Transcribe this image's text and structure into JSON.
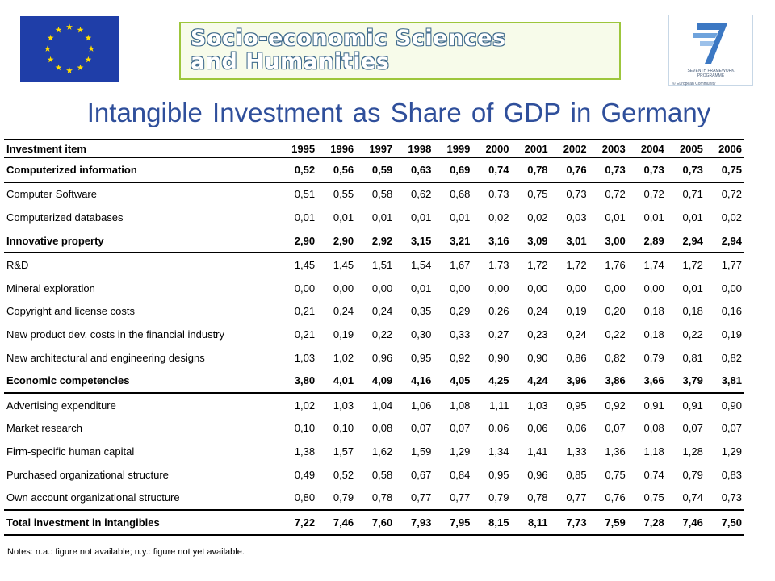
{
  "logos": {
    "left": "eu-flag-logo",
    "banner_line1": "Socio-economic Sciences",
    "banner_line2": "and Humanities",
    "right_caption_1": "SEVENTH FRAMEWORK",
    "right_caption_2": "PROGRAMME",
    "right_caption_3": "© European Community"
  },
  "title": "Intangible Investment as Share of GDP in Germany",
  "table": {
    "header_label": "Investment item",
    "years": [
      "1995",
      "1996",
      "1997",
      "1998",
      "1999",
      "2000",
      "2001",
      "2002",
      "2003",
      "2004",
      "2005",
      "2006"
    ],
    "rows": [
      {
        "label": "Computerized information",
        "bold": true,
        "values": [
          "0,52",
          "0,56",
          "0,59",
          "0,63",
          "0,69",
          "0,74",
          "0,78",
          "0,76",
          "0,73",
          "0,73",
          "0,73",
          "0,75"
        ]
      },
      {
        "label": "Computer Software",
        "bold": false,
        "values": [
          "0,51",
          "0,55",
          "0,58",
          "0,62",
          "0,68",
          "0,73",
          "0,75",
          "0,73",
          "0,72",
          "0,72",
          "0,71",
          "0,72"
        ]
      },
      {
        "label": "Computerized databases",
        "bold": false,
        "values": [
          "0,01",
          "0,01",
          "0,01",
          "0,01",
          "0,01",
          "0,02",
          "0,02",
          "0,03",
          "0,01",
          "0,01",
          "0,01",
          "0,02"
        ]
      },
      {
        "label": "Innovative property",
        "bold": true,
        "values": [
          "2,90",
          "2,90",
          "2,92",
          "3,15",
          "3,21",
          "3,16",
          "3,09",
          "3,01",
          "3,00",
          "2,89",
          "2,94",
          "2,94"
        ]
      },
      {
        "label": "R&D",
        "bold": false,
        "values": [
          "1,45",
          "1,45",
          "1,51",
          "1,54",
          "1,67",
          "1,73",
          "1,72",
          "1,72",
          "1,76",
          "1,74",
          "1,72",
          "1,77"
        ]
      },
      {
        "label": "Mineral exploration",
        "bold": false,
        "values": [
          "0,00",
          "0,00",
          "0,00",
          "0,01",
          "0,00",
          "0,00",
          "0,00",
          "0,00",
          "0,00",
          "0,00",
          "0,01",
          "0,00"
        ]
      },
      {
        "label": "Copyright and license costs",
        "bold": false,
        "values": [
          "0,21",
          "0,24",
          "0,24",
          "0,35",
          "0,29",
          "0,26",
          "0,24",
          "0,19",
          "0,20",
          "0,18",
          "0,18",
          "0,16"
        ]
      },
      {
        "label": "New product dev. costs in the financial industry",
        "bold": false,
        "values": [
          "0,21",
          "0,19",
          "0,22",
          "0,30",
          "0,33",
          "0,27",
          "0,23",
          "0,24",
          "0,22",
          "0,18",
          "0,22",
          "0,19"
        ]
      },
      {
        "label": "New architectural and engineering designs",
        "bold": false,
        "values": [
          "1,03",
          "1,02",
          "0,96",
          "0,95",
          "0,92",
          "0,90",
          "0,90",
          "0,86",
          "0,82",
          "0,79",
          "0,81",
          "0,82"
        ]
      },
      {
        "label": "Economic competencies",
        "bold": true,
        "values": [
          "3,80",
          "4,01",
          "4,09",
          "4,16",
          "4,05",
          "4,25",
          "4,24",
          "3,96",
          "3,86",
          "3,66",
          "3,79",
          "3,81"
        ]
      },
      {
        "label": "Advertising expenditure",
        "bold": false,
        "values": [
          "1,02",
          "1,03",
          "1,04",
          "1,06",
          "1,08",
          "1,11",
          "1,03",
          "0,95",
          "0,92",
          "0,91",
          "0,91",
          "0,90"
        ]
      },
      {
        "label": "Market research",
        "bold": false,
        "values": [
          "0,10",
          "0,10",
          "0,08",
          "0,07",
          "0,07",
          "0,06",
          "0,06",
          "0,06",
          "0,07",
          "0,08",
          "0,07",
          "0,07"
        ]
      },
      {
        "label": "Firm-specific human capital",
        "bold": false,
        "values": [
          "1,38",
          "1,57",
          "1,62",
          "1,59",
          "1,29",
          "1,34",
          "1,41",
          "1,33",
          "1,36",
          "1,18",
          "1,28",
          "1,29"
        ]
      },
      {
        "label": "Purchased organizational structure",
        "bold": false,
        "values": [
          "0,49",
          "0,52",
          "0,58",
          "0,67",
          "0,84",
          "0,95",
          "0,96",
          "0,85",
          "0,75",
          "0,74",
          "0,79",
          "0,83"
        ]
      },
      {
        "label": "Own account organizational structure",
        "bold": false,
        "values": [
          "0,80",
          "0,79",
          "0,78",
          "0,77",
          "0,77",
          "0,79",
          "0,78",
          "0,77",
          "0,76",
          "0,75",
          "0,74",
          "0,73"
        ]
      },
      {
        "label": "Total investment in intangibles",
        "bold": true,
        "values": [
          "7,22",
          "7,46",
          "7,60",
          "7,93",
          "7,95",
          "8,15",
          "8,11",
          "7,73",
          "7,59",
          "7,28",
          "7,46",
          "7,50"
        ]
      }
    ]
  },
  "notes": "Notes: n.a.: figure not available; n.y.: figure not yet available.",
  "colors": {
    "title": "#2f4f9b",
    "eu_blue": "#1f3ea8",
    "eu_star": "#ffdd00"
  }
}
